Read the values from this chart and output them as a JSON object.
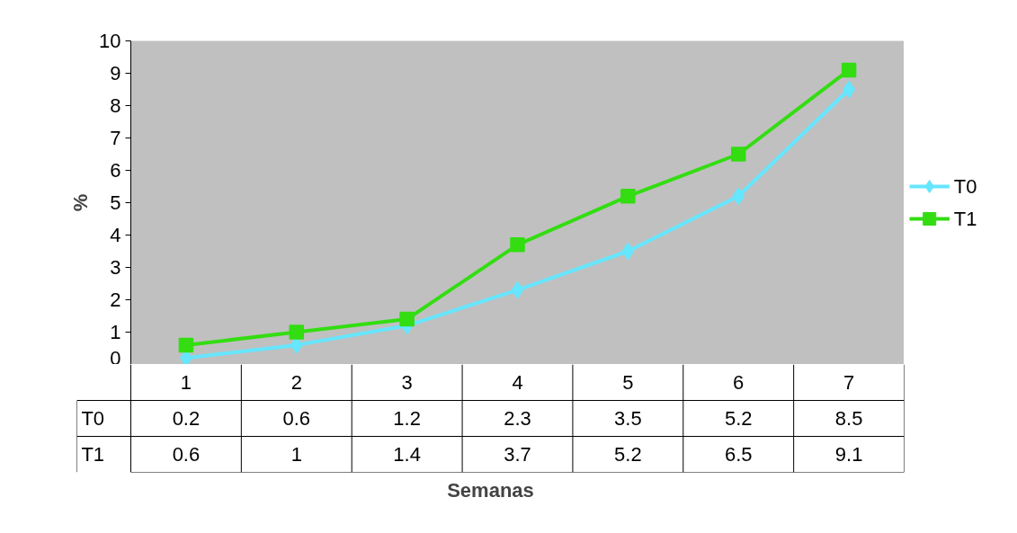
{
  "chart_data": {
    "type": "line",
    "xlabel": "Semanas",
    "ylabel": "%",
    "categories": [
      "1",
      "2",
      "3",
      "4",
      "5",
      "6",
      "7"
    ],
    "series": [
      {
        "name": "T0",
        "color": "#66e6ff",
        "marker": "diamond",
        "values": [
          0.2,
          0.6,
          1.2,
          2.3,
          3.5,
          5.2,
          8.5
        ]
      },
      {
        "name": "T1",
        "color": "#33dd11",
        "marker": "square",
        "values": [
          0.6,
          1,
          1.4,
          3.7,
          5.2,
          6.5,
          9.1
        ]
      }
    ],
    "ylim": [
      0,
      10
    ],
    "yticks": [
      0,
      1,
      2,
      3,
      4,
      5,
      6,
      7,
      8,
      9,
      10
    ],
    "legend": "right",
    "data_labels": true,
    "line_style": "solid"
  }
}
